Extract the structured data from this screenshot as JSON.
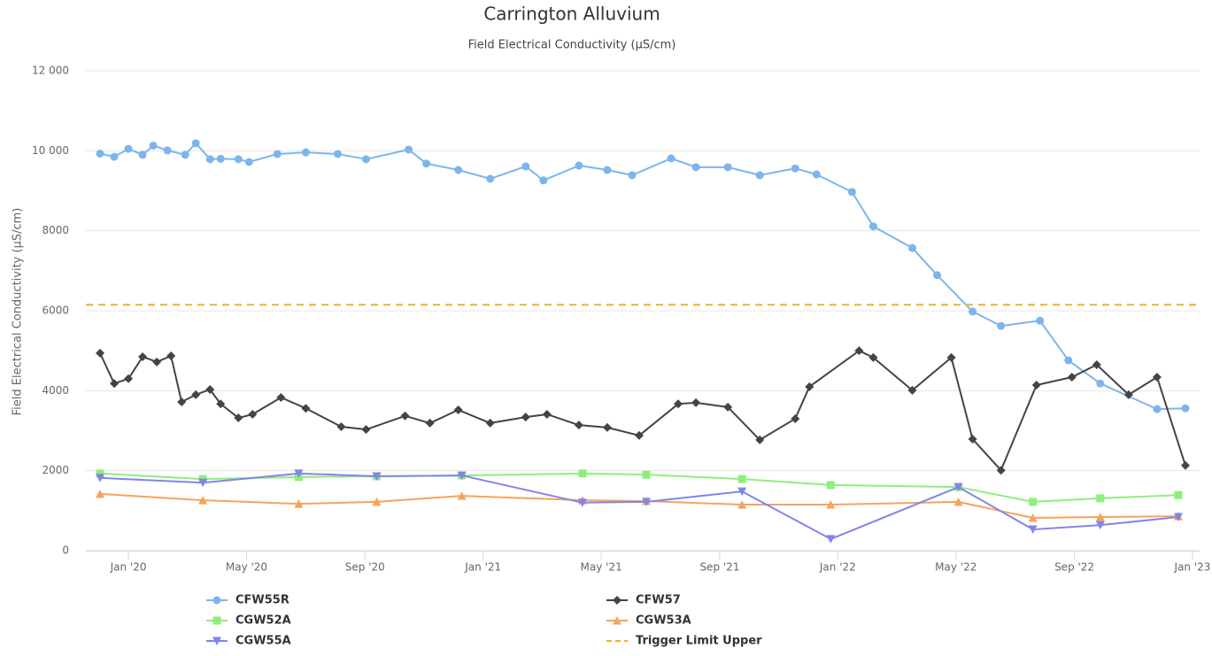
{
  "chart_data": {
    "type": "line",
    "title": "Carrington Alluvium",
    "subtitle": "Field Electrical Conductivity (µS/cm)",
    "y_label": "Field Electrical Conductivity (µS/cm)",
    "xlim": [
      2019.88,
      2023.02
    ],
    "xticks": [
      {
        "value": 2020.0,
        "label": "Jan '20"
      },
      {
        "value": 2020.333,
        "label": "May '20"
      },
      {
        "value": 2020.667,
        "label": "Sep '20"
      },
      {
        "value": 2021.0,
        "label": "Jan '21"
      },
      {
        "value": 2021.333,
        "label": "May '21"
      },
      {
        "value": 2021.667,
        "label": "Sep '21"
      },
      {
        "value": 2022.0,
        "label": "Jan '22"
      },
      {
        "value": 2022.333,
        "label": "May '22"
      },
      {
        "value": 2022.667,
        "label": "Sep '22"
      },
      {
        "value": 2023.0,
        "label": "Jan '23"
      }
    ],
    "ylim": [
      0,
      12000
    ],
    "yticks": [
      0,
      2000,
      4000,
      6000,
      8000,
      {
        "value": 10000,
        "label": "10 000"
      },
      {
        "value": 12000,
        "label": "12 000"
      }
    ],
    "grid": true,
    "series": [
      {
        "name": "CFW55R",
        "color": "#7cb5ec",
        "marker": "circle",
        "x": [
          2019.92,
          2019.96,
          2020.0,
          2020.04,
          2020.07,
          2020.11,
          2020.16,
          2020.19,
          2020.23,
          2020.26,
          2020.31,
          2020.34,
          2020.42,
          2020.5,
          2020.59,
          2020.67,
          2020.79,
          2020.84,
          2020.93,
          2021.02,
          2021.12,
          2021.17,
          2021.27,
          2021.35,
          2021.42,
          2021.53,
          2021.6,
          2021.69,
          2021.78,
          2021.88,
          2021.94,
          2022.04,
          2022.1,
          2022.21,
          2022.28,
          2022.38,
          2022.46,
          2022.57,
          2022.65,
          2022.74,
          2022.9,
          2022.98
        ],
        "values": [
          9930,
          9850,
          10050,
          9900,
          10130,
          10010,
          9900,
          10190,
          9790,
          9800,
          9790,
          9720,
          9920,
          9960,
          9920,
          9790,
          10030,
          9680,
          9520,
          9300,
          9610,
          9260,
          9630,
          9520,
          9390,
          9810,
          9590,
          9590,
          9390,
          9560,
          9410,
          8970,
          8110,
          7570,
          6890,
          5980,
          5620,
          5750,
          4760,
          4180,
          3540,
          3560
        ]
      },
      {
        "name": "CFW57",
        "color": "#434348",
        "marker": "diamond",
        "x": [
          2019.92,
          2019.96,
          2020.0,
          2020.04,
          2020.08,
          2020.12,
          2020.15,
          2020.19,
          2020.23,
          2020.26,
          2020.31,
          2020.35,
          2020.43,
          2020.5,
          2020.6,
          2020.67,
          2020.78,
          2020.85,
          2020.93,
          2021.02,
          2021.12,
          2021.18,
          2021.27,
          2021.35,
          2021.44,
          2021.55,
          2021.6,
          2021.69,
          2021.78,
          2021.88,
          2021.92,
          2022.06,
          2022.1,
          2022.21,
          2022.32,
          2022.38,
          2022.46,
          2022.56,
          2022.66,
          2022.73,
          2022.82,
          2022.9,
          2022.98
        ],
        "values": [
          4940,
          4180,
          4300,
          4850,
          4720,
          4870,
          3720,
          3900,
          4030,
          3670,
          3320,
          3410,
          3830,
          3560,
          3100,
          3030,
          3370,
          3190,
          3520,
          3190,
          3340,
          3410,
          3140,
          3080,
          2880,
          3670,
          3700,
          3590,
          2770,
          3300,
          4100,
          5000,
          4830,
          4010,
          4830,
          2790,
          2010,
          4140,
          4340,
          4650,
          3900,
          4340,
          2130
        ]
      },
      {
        "name": "CGW52A",
        "color": "#90ed7d",
        "marker": "square",
        "x": [
          2019.92,
          2020.21,
          2020.48,
          2020.7,
          2020.94,
          2021.28,
          2021.46,
          2021.73,
          2021.98,
          2022.34,
          2022.55,
          2022.74,
          2022.96
        ],
        "values": [
          1930,
          1790,
          1840,
          1860,
          1880,
          1930,
          1900,
          1790,
          1640,
          1590,
          1220,
          1310,
          1390
        ]
      },
      {
        "name": "CGW53A",
        "color": "#f7a35c",
        "marker": "triangle",
        "x": [
          2019.92,
          2020.21,
          2020.48,
          2020.7,
          2020.94,
          2021.28,
          2021.46,
          2021.73,
          2021.98,
          2022.34,
          2022.55,
          2022.74,
          2022.96
        ],
        "values": [
          1420,
          1260,
          1170,
          1220,
          1370,
          1260,
          1240,
          1150,
          1150,
          1220,
          820,
          840,
          860
        ]
      },
      {
        "name": "CGW55A",
        "color": "#8085e9",
        "marker": "triangle-down",
        "x": [
          2019.92,
          2020.21,
          2020.48,
          2020.7,
          2020.94,
          2021.28,
          2021.46,
          2021.73,
          2021.98,
          2022.34,
          2022.55,
          2022.74,
          2022.96
        ],
        "values": [
          1820,
          1700,
          1930,
          1860,
          1880,
          1200,
          1220,
          1480,
          290,
          1590,
          530,
          640,
          840
        ]
      },
      {
        "name": "Trigger Limit Upper",
        "color": "#f2b21f",
        "marker": "none",
        "dash": true,
        "x": [
          2019.88,
          2023.02
        ],
        "values": [
          6150,
          6150
        ]
      }
    ]
  }
}
